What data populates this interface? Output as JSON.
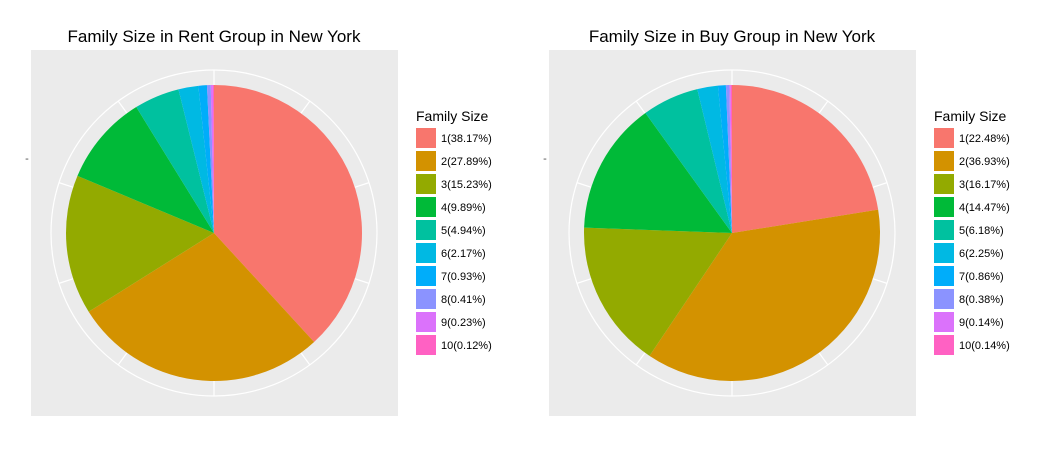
{
  "legend_title": "Family Size",
  "y_tick_mark": "-",
  "colors": [
    "#F8766D",
    "#D39200",
    "#93AA00",
    "#00BA38",
    "#00C19F",
    "#00B9E3",
    "#00ADFA",
    "#8B93FF",
    "#DB72FB",
    "#FF61C3"
  ],
  "panel_color": "#EBEBEB",
  "chart_data": [
    {
      "type": "pie",
      "title": "Family Size in Rent Group in New York",
      "categories": [
        "1",
        "2",
        "3",
        "4",
        "5",
        "6",
        "7",
        "8",
        "9",
        "10"
      ],
      "values": [
        38.17,
        27.89,
        15.23,
        9.89,
        4.94,
        2.17,
        0.93,
        0.41,
        0.23,
        0.12
      ],
      "legend_labels": [
        "1(38.17%)",
        "2(27.89%)",
        "3(15.23%)",
        "4(9.89%)",
        "5(4.94%)",
        "6(2.17%)",
        "7(0.93%)",
        "8(0.41%)",
        "9(0.23%)",
        "10(0.12%)"
      ],
      "legend_position": "right",
      "grid": true
    },
    {
      "type": "pie",
      "title": "Family Size in Buy Group in New York",
      "categories": [
        "1",
        "2",
        "3",
        "4",
        "5",
        "6",
        "7",
        "8",
        "9",
        "10"
      ],
      "values": [
        22.48,
        36.93,
        16.17,
        14.47,
        6.18,
        2.25,
        0.86,
        0.38,
        0.14,
        0.14
      ],
      "legend_labels": [
        "1(22.48%)",
        "2(36.93%)",
        "3(16.17%)",
        "4(14.47%)",
        "5(6.18%)",
        "6(2.25%)",
        "7(0.86%)",
        "8(0.38%)",
        "9(0.14%)",
        "10(0.14%)"
      ],
      "legend_position": "right",
      "grid": true
    }
  ]
}
